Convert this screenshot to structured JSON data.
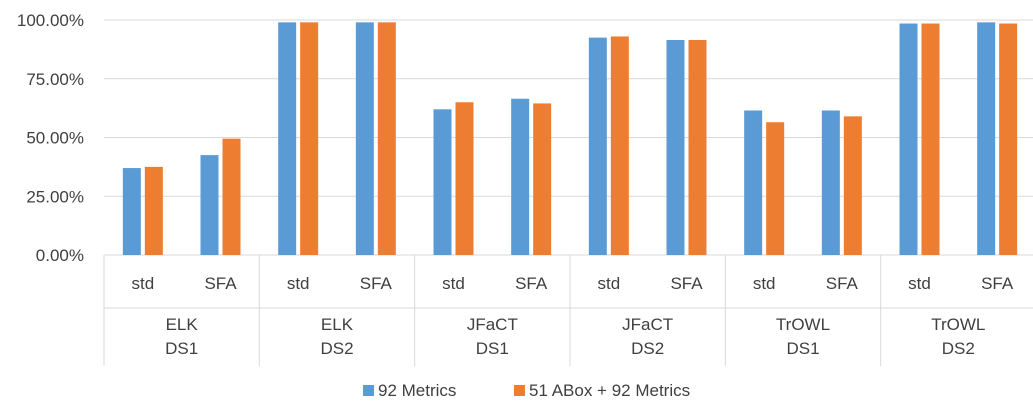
{
  "chart_data": {
    "type": "bar",
    "title": "",
    "xlabel": "",
    "ylabel": "",
    "ylim": [
      0,
      100
    ],
    "yticks": [
      "0.00%",
      "25.00%",
      "50.00%",
      "75.00%",
      "100.00%"
    ],
    "groups": [
      {
        "line1": "ELK",
        "line2": "DS1"
      },
      {
        "line1": "ELK",
        "line2": "DS2"
      },
      {
        "line1": "JFaCT",
        "line2": "DS1"
      },
      {
        "line1": "JFaCT",
        "line2": "DS2"
      },
      {
        "line1": "TrOWL",
        "line2": "DS1"
      },
      {
        "line1": "TrOWL",
        "line2": "DS2"
      }
    ],
    "categories": [
      "std",
      "SFA",
      "std",
      "SFA",
      "std",
      "SFA",
      "std",
      "SFA",
      "std",
      "SFA",
      "std",
      "SFA"
    ],
    "series": [
      {
        "name": "92 Metrics",
        "color": "#5B9BD5",
        "values": [
          37.0,
          42.5,
          99.0,
          99.0,
          62.0,
          66.5,
          92.5,
          91.5,
          61.5,
          61.5,
          98.5,
          99.0
        ]
      },
      {
        "name": "51 ABox + 92 Metrics",
        "color": "#ED7D31",
        "values": [
          37.5,
          49.5,
          99.0,
          99.0,
          65.0,
          64.5,
          93.0,
          91.5,
          56.5,
          59.0,
          98.5,
          98.5
        ]
      }
    ],
    "grid": true,
    "legend": "bottom"
  }
}
